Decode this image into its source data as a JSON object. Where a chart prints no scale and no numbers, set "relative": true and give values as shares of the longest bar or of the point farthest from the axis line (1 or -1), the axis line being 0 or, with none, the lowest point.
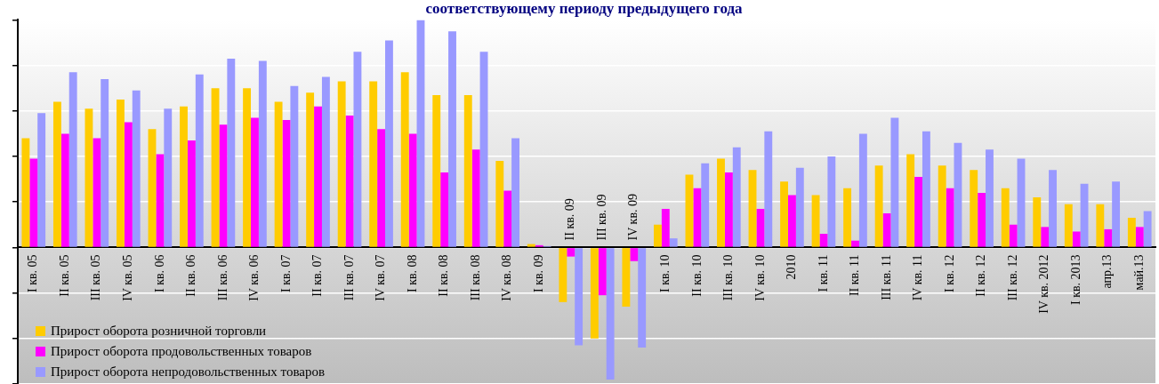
{
  "chart_data": {
    "type": "bar",
    "title": "соответствующему периоду предыдущего года",
    "categories": [
      "I кв. 05",
      "II кв. 05",
      "III кв. 05",
      "IV кв. 05",
      "I кв. 06",
      "II кв. 06",
      "III кв. 06",
      "IV кв. 06",
      "I кв. 07",
      "II кв. 07",
      "III кв. 07",
      "IV кв. 07",
      "I кв. 08",
      "II кв. 08",
      "III кв. 08",
      "IV кв. 08",
      "I кв. 09",
      "II кв. 09",
      "III кв. 09",
      "IV кв. 09",
      "I кв. 10",
      "II кв. 10",
      "III кв. 10",
      "IV кв. 10",
      "2010",
      "I кв. 11",
      "II кв. 11",
      "III кв. 11",
      "IV кв. 11",
      "I кв. 12",
      "II кв. 12",
      "III кв. 12",
      "IV кв. 2012",
      "I кв. 2013",
      "апр.13",
      "май.13"
    ],
    "relative": true,
    "grid": "y",
    "legend": "bottom left",
    "series": [
      {
        "name": "Прирост оборота розничной торговли",
        "color": "#ffcc00",
        "values": [
          0.48,
          0.64,
          0.61,
          0.65,
          0.52,
          0.62,
          0.7,
          0.7,
          0.64,
          0.68,
          0.73,
          0.73,
          0.77,
          0.67,
          0.67,
          0.38,
          0.015,
          -0.24,
          -0.4,
          -0.26,
          0.1,
          0.32,
          0.39,
          0.34,
          0.29,
          0.23,
          0.26,
          0.36,
          0.41,
          0.36,
          0.34,
          0.26,
          0.22,
          0.19,
          0.19,
          0.13
        ]
      },
      {
        "name": "Прирост оборота продовольственных товаров",
        "color": "#ff00ff",
        "values": [
          0.39,
          0.5,
          0.48,
          0.55,
          0.41,
          0.47,
          0.54,
          0.57,
          0.56,
          0.62,
          0.58,
          0.52,
          0.5,
          0.33,
          0.43,
          0.25,
          0.01,
          -0.04,
          -0.21,
          -0.06,
          0.17,
          0.26,
          0.33,
          0.17,
          0.23,
          0.06,
          0.03,
          0.15,
          0.31,
          0.26,
          0.24,
          0.1,
          0.09,
          0.07,
          0.08,
          0.09
        ]
      },
      {
        "name": "Прирост оборота непродовольственных товаров",
        "color": "#9999ff",
        "values": [
          0.59,
          0.77,
          0.74,
          0.69,
          0.61,
          0.76,
          0.83,
          0.82,
          0.71,
          0.75,
          0.86,
          0.91,
          1,
          0.95,
          0.86,
          0.48,
          0.006,
          -0.43,
          -0.58,
          -0.44,
          0.04,
          0.37,
          0.44,
          0.51,
          0.35,
          0.4,
          0.5,
          0.57,
          0.51,
          0.46,
          0.43,
          0.39,
          0.34,
          0.28,
          0.29,
          0.16
        ]
      }
    ]
  }
}
